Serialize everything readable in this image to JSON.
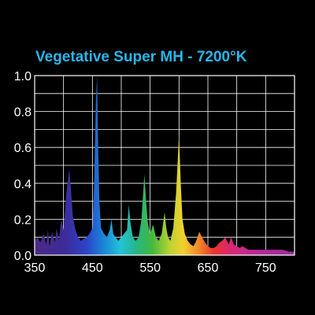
{
  "chart_data": {
    "type": "area",
    "title": "Vegetative Super MH - 7200°K",
    "title_color": "#29b6ec",
    "xlabel": "",
    "ylabel": "",
    "xlim": [
      350,
      800
    ],
    "ylim": [
      0,
      1.0
    ],
    "x_ticks": [
      "350",
      "450",
      "550",
      "650",
      "750"
    ],
    "y_ticks": [
      "0.0",
      "0.2",
      "0.4",
      "0.6",
      "0.8",
      "1.0"
    ],
    "grid": true,
    "grid_color": "#ffffff",
    "plot_background": "#000000",
    "fill": "visible-spectrum-gradient",
    "series": [
      {
        "x": [
          350,
          355,
          360,
          365,
          370,
          373,
          376,
          380,
          385,
          388,
          392,
          396,
          400,
          405,
          410,
          413,
          416,
          420,
          425,
          430,
          435,
          440,
          445,
          450,
          453,
          456,
          458,
          460,
          462,
          465,
          470,
          475,
          480,
          483,
          486,
          490,
          495,
          500,
          505,
          510,
          513,
          516,
          520,
          525,
          530,
          535,
          540,
          543,
          546,
          550,
          555,
          560,
          565,
          570,
          575,
          578,
          581,
          585,
          590,
          595,
          600,
          603,
          606,
          610,
          615,
          620,
          625,
          630,
          635,
          640,
          645,
          650,
          655,
          660,
          665,
          670,
          675,
          680,
          683,
          686,
          690,
          695,
          700,
          705,
          710,
          715,
          720,
          730,
          740,
          750,
          760,
          770,
          780,
          790,
          800
        ],
        "values": [
          0.08,
          0.1,
          0.07,
          0.12,
          0.06,
          0.14,
          0.05,
          0.13,
          0.07,
          0.15,
          0.08,
          0.2,
          0.14,
          0.35,
          0.48,
          0.36,
          0.22,
          0.15,
          0.1,
          0.08,
          0.09,
          0.1,
          0.12,
          0.15,
          0.4,
          0.85,
          1.0,
          0.6,
          0.3,
          0.15,
          0.12,
          0.1,
          0.14,
          0.2,
          0.12,
          0.1,
          0.08,
          0.1,
          0.12,
          0.14,
          0.28,
          0.18,
          0.1,
          0.08,
          0.1,
          0.2,
          0.45,
          0.3,
          0.18,
          0.12,
          0.17,
          0.1,
          0.08,
          0.12,
          0.24,
          0.15,
          0.1,
          0.08,
          0.15,
          0.35,
          0.67,
          0.4,
          0.2,
          0.12,
          0.08,
          0.06,
          0.05,
          0.08,
          0.13,
          0.1,
          0.07,
          0.05,
          0.04,
          0.04,
          0.05,
          0.07,
          0.08,
          0.1,
          0.08,
          0.06,
          0.1,
          0.06,
          0.05,
          0.04,
          0.05,
          0.04,
          0.03,
          0.03,
          0.03,
          0.03,
          0.03,
          0.03,
          0.03,
          0.02,
          0.02
        ]
      }
    ]
  }
}
